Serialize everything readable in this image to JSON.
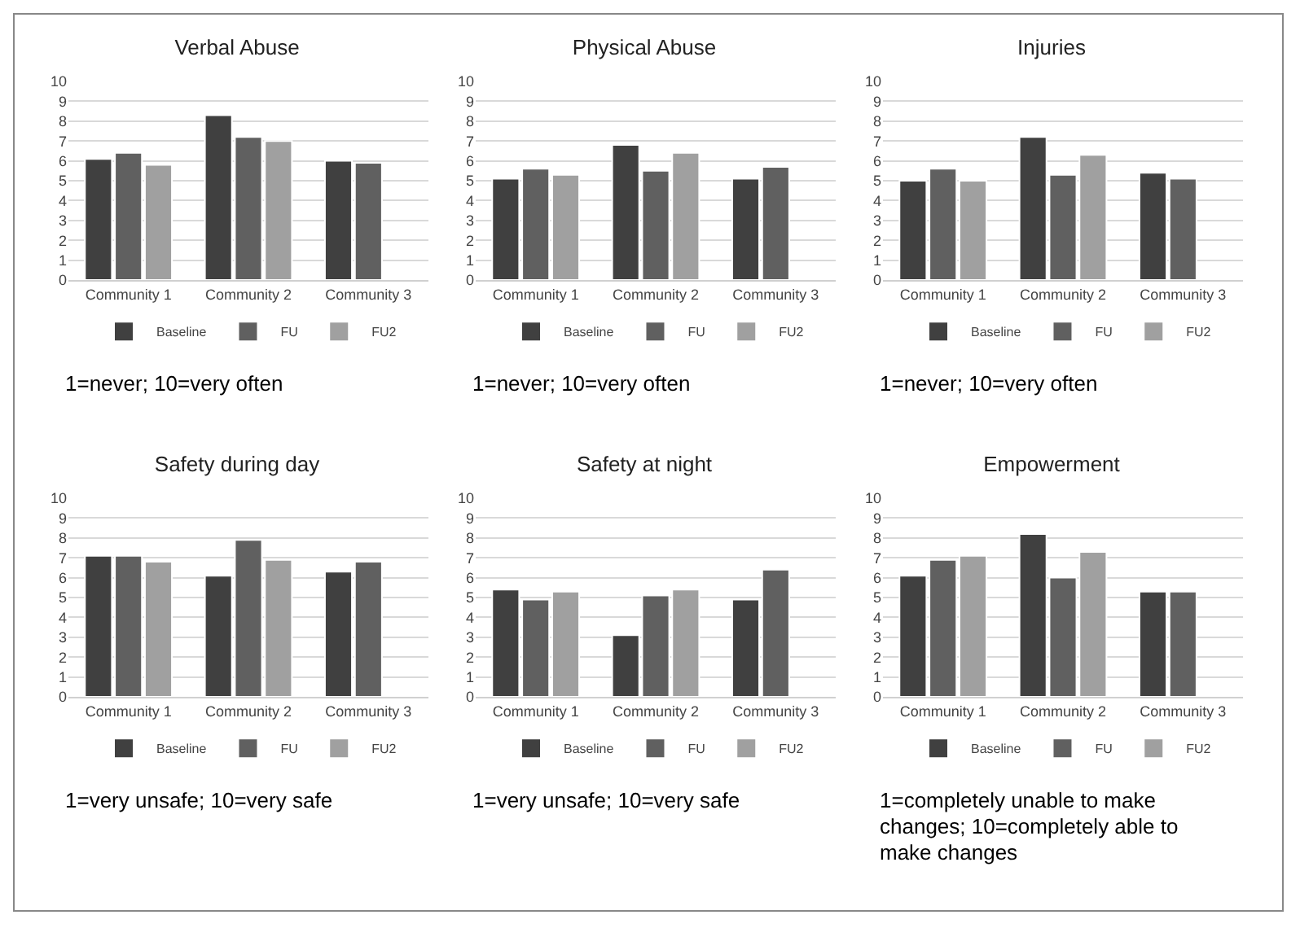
{
  "chart_data": [
    {
      "type": "bar",
      "title": "Verbal Abuse",
      "categories": [
        "Community 1",
        "Community 2",
        "Community 3"
      ],
      "ylim": [
        0,
        10
      ],
      "yticks": [
        0,
        1,
        2,
        3,
        4,
        5,
        6,
        7,
        8,
        9,
        10
      ],
      "grid": "y",
      "legend": "bottom",
      "annotations": [
        "1=never; 10=very often"
      ],
      "series": [
        {
          "name": "Baseline",
          "color": "#404040",
          "values": [
            6.1,
            8.3,
            6.0
          ]
        },
        {
          "name": "FU",
          "color": "#606060",
          "values": [
            6.4,
            7.2,
            5.9
          ]
        },
        {
          "name": "FU2",
          "color": "#a0a0a0",
          "values": [
            5.8,
            7.0,
            null
          ]
        }
      ]
    },
    {
      "type": "bar",
      "title": "Physical Abuse",
      "categories": [
        "Community 1",
        "Community 2",
        "Community 3"
      ],
      "ylim": [
        0,
        10
      ],
      "yticks": [
        0,
        1,
        2,
        3,
        4,
        5,
        6,
        7,
        8,
        9,
        10
      ],
      "grid": "y",
      "legend": "bottom",
      "annotations": [
        "1=never; 10=very often"
      ],
      "series": [
        {
          "name": "Baseline",
          "color": "#404040",
          "values": [
            5.1,
            6.8,
            5.1
          ]
        },
        {
          "name": "FU",
          "color": "#606060",
          "values": [
            5.6,
            5.5,
            5.7
          ]
        },
        {
          "name": "FU2",
          "color": "#a0a0a0",
          "values": [
            5.3,
            6.4,
            null
          ]
        }
      ]
    },
    {
      "type": "bar",
      "title": "Injuries",
      "categories": [
        "Community 1",
        "Community 2",
        "Community 3"
      ],
      "ylim": [
        0,
        10
      ],
      "yticks": [
        0,
        1,
        2,
        3,
        4,
        5,
        6,
        7,
        8,
        9,
        10
      ],
      "grid": "y",
      "legend": "bottom",
      "annotations": [
        "1=never; 10=very often"
      ],
      "series": [
        {
          "name": "Baseline",
          "color": "#404040",
          "values": [
            5.0,
            7.2,
            5.4
          ]
        },
        {
          "name": "FU",
          "color": "#606060",
          "values": [
            5.6,
            5.3,
            5.1
          ]
        },
        {
          "name": "FU2",
          "color": "#a0a0a0",
          "values": [
            5.0,
            6.3,
            null
          ]
        }
      ]
    },
    {
      "type": "bar",
      "title": "Safety during day",
      "categories": [
        "Community 1",
        "Community 2",
        "Community 3"
      ],
      "ylim": [
        0,
        10
      ],
      "yticks": [
        0,
        1,
        2,
        3,
        4,
        5,
        6,
        7,
        8,
        9,
        10
      ],
      "grid": "y",
      "legend": "bottom",
      "annotations": [
        "1=very unsafe; 10=very safe"
      ],
      "series": [
        {
          "name": "Baseline",
          "color": "#404040",
          "values": [
            7.1,
            6.1,
            6.3
          ]
        },
        {
          "name": "FU",
          "color": "#606060",
          "values": [
            7.1,
            7.9,
            6.8
          ]
        },
        {
          "name": "FU2",
          "color": "#a0a0a0",
          "values": [
            6.8,
            6.9,
            null
          ]
        }
      ]
    },
    {
      "type": "bar",
      "title": "Safety at night",
      "categories": [
        "Community 1",
        "Community 2",
        "Community 3"
      ],
      "ylim": [
        0,
        10
      ],
      "yticks": [
        0,
        1,
        2,
        3,
        4,
        5,
        6,
        7,
        8,
        9,
        10
      ],
      "grid": "y",
      "legend": "bottom",
      "annotations": [
        "1=very unsafe; 10=very safe"
      ],
      "series": [
        {
          "name": "Baseline",
          "color": "#404040",
          "values": [
            5.4,
            3.1,
            4.9
          ]
        },
        {
          "name": "FU",
          "color": "#606060",
          "values": [
            4.9,
            5.1,
            6.4
          ]
        },
        {
          "name": "FU2",
          "color": "#a0a0a0",
          "values": [
            5.3,
            5.4,
            null
          ]
        }
      ]
    },
    {
      "type": "bar",
      "title": "Empowerment",
      "categories": [
        "Community 1",
        "Community 2",
        "Community 3"
      ],
      "ylim": [
        0,
        10
      ],
      "yticks": [
        0,
        1,
        2,
        3,
        4,
        5,
        6,
        7,
        8,
        9,
        10
      ],
      "grid": "y",
      "legend": "bottom",
      "annotations": [
        "1=completely unable to make changes; 10=completely able to make changes"
      ],
      "series": [
        {
          "name": "Baseline",
          "color": "#404040",
          "values": [
            6.1,
            8.2,
            5.3
          ]
        },
        {
          "name": "FU",
          "color": "#606060",
          "values": [
            6.9,
            6.0,
            5.3
          ]
        },
        {
          "name": "FU2",
          "color": "#a0a0a0",
          "values": [
            7.1,
            7.3,
            null
          ]
        }
      ]
    }
  ]
}
